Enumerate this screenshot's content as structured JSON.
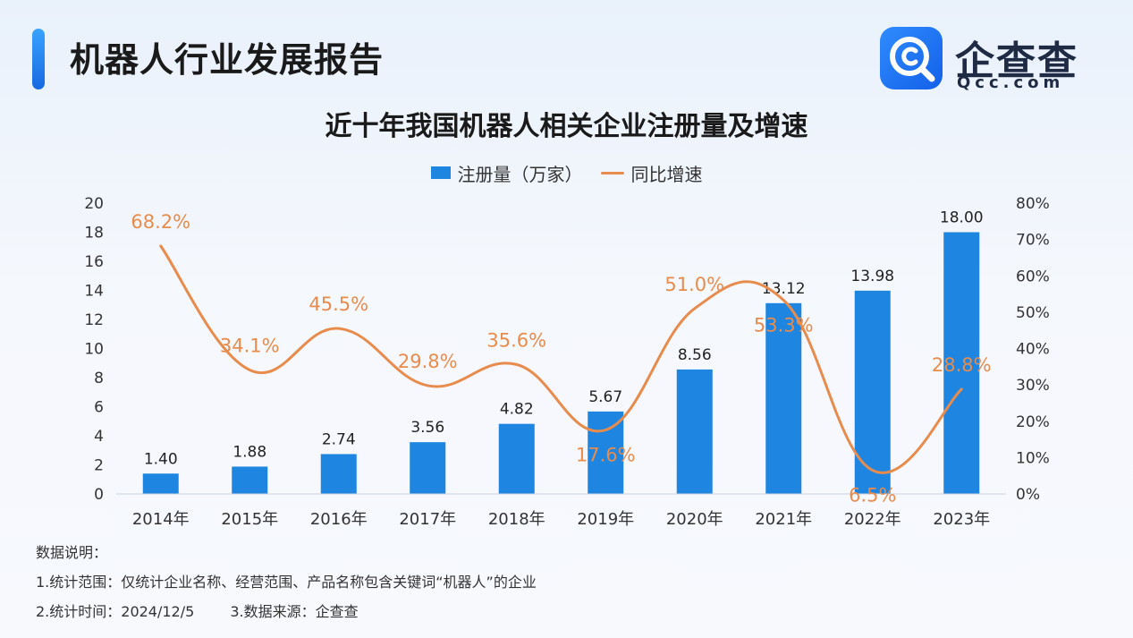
{
  "header": {
    "report_title": "机器人行业发展报告",
    "logo_name": "企查查",
    "logo_domain": "Qcc.com",
    "logo_icon": "magnifier-c-icon"
  },
  "chart_data": {
    "type": "bar-line",
    "title": "近十年我国机器人相关企业注册量及增速",
    "categories": [
      "2014年",
      "2015年",
      "2016年",
      "2017年",
      "2018年",
      "2019年",
      "2020年",
      "2021年",
      "2022年",
      "2023年"
    ],
    "series": [
      {
        "name": "注册量（万家）",
        "type": "bar",
        "axis": "left",
        "color": "#1e86e0",
        "values": [
          1.4,
          1.88,
          2.74,
          3.56,
          4.82,
          5.67,
          8.56,
          13.12,
          13.98,
          18.0
        ],
        "labels": [
          "1.40",
          "1.88",
          "2.74",
          "3.56",
          "4.82",
          "5.67",
          "8.56",
          "13.12",
          "13.98",
          "18.00"
        ]
      },
      {
        "name": "同比增速",
        "type": "line",
        "axis": "right",
        "color": "#e88c4e",
        "values": [
          68.2,
          34.1,
          45.5,
          29.8,
          35.6,
          17.6,
          51.0,
          53.3,
          6.5,
          28.8
        ],
        "labels": [
          "68.2%",
          "34.1%",
          "45.5%",
          "29.8%",
          "35.6%",
          "17.6%",
          "51.0%",
          "53.3%",
          "6.5%",
          "28.8%"
        ]
      }
    ],
    "y_left": {
      "ylim": [
        0,
        20
      ],
      "ticks": [
        "0",
        "2",
        "4",
        "6",
        "8",
        "10",
        "12",
        "14",
        "16",
        "18",
        "20"
      ]
    },
    "y_right": {
      "ylim": [
        0,
        80
      ],
      "ticks": [
        "0%",
        "10%",
        "20%",
        "30%",
        "40%",
        "50%",
        "60%",
        "70%",
        "80%"
      ]
    },
    "legend": "top-center",
    "grid": false
  },
  "notes": {
    "heading": "数据说明：",
    "line1": "1.统计范围：仅统计企业名称、经营范围、产品名称包含关键词“机器人”的企业",
    "line2a": "2.统计时间：2024/12/5",
    "line2b": "3.数据来源：企查查"
  }
}
